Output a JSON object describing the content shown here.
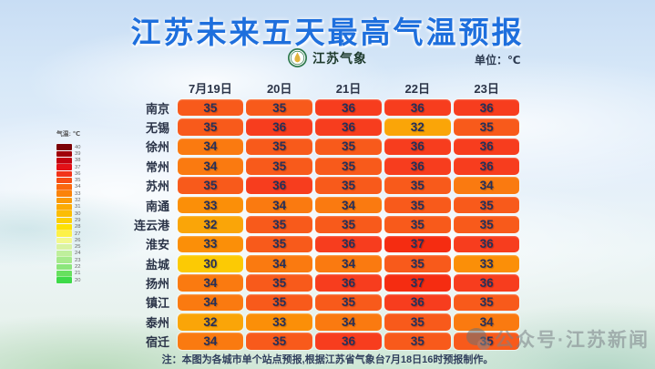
{
  "title": "江苏未来五天最高气温预报",
  "logo": {
    "name": "江苏气象"
  },
  "unit_label": "单位：℃",
  "legend": {
    "title": "气温: ℃",
    "steps": [
      {
        "value": "40",
        "color": "#7c0207"
      },
      {
        "value": "39",
        "color": "#a00009"
      },
      {
        "value": "38",
        "color": "#c30310"
      },
      {
        "value": "37",
        "color": "#e31117"
      },
      {
        "value": "36",
        "color": "#f2331a"
      },
      {
        "value": "35",
        "color": "#f74d14"
      },
      {
        "value": "34",
        "color": "#fa680e"
      },
      {
        "value": "33",
        "color": "#fb8309"
      },
      {
        "value": "32",
        "color": "#fa9a06"
      },
      {
        "value": "31",
        "color": "#fbab05"
      },
      {
        "value": "30",
        "color": "#fbbd04"
      },
      {
        "value": "29",
        "color": "#fccf03"
      },
      {
        "value": "28",
        "color": "#fde104"
      },
      {
        "value": "27",
        "color": "#fdf148"
      },
      {
        "value": "26",
        "color": "#f2f88e"
      },
      {
        "value": "25",
        "color": "#d9f3a3"
      },
      {
        "value": "24",
        "color": "#bfef9c"
      },
      {
        "value": "23",
        "color": "#a6ea8c"
      },
      {
        "value": "22",
        "color": "#8ce67c"
      },
      {
        "value": "21",
        "color": "#67e05f"
      },
      {
        "value": "20",
        "color": "#3eda49"
      }
    ]
  },
  "table": {
    "columns": [
      "7月19日",
      "20日",
      "21日",
      "22日",
      "23日"
    ],
    "rows": [
      {
        "city": "南京",
        "temps": [
          35,
          35,
          36,
          36,
          36
        ]
      },
      {
        "city": "无锡",
        "temps": [
          35,
          36,
          36,
          32,
          35
        ]
      },
      {
        "city": "徐州",
        "temps": [
          34,
          35,
          35,
          36,
          36
        ]
      },
      {
        "city": "常州",
        "temps": [
          34,
          35,
          35,
          36,
          36
        ]
      },
      {
        "city": "苏州",
        "temps": [
          35,
          36,
          35,
          35,
          34
        ]
      },
      {
        "city": "南通",
        "temps": [
          33,
          34,
          34,
          35,
          35
        ]
      },
      {
        "city": "连云港",
        "temps": [
          32,
          35,
          35,
          35,
          35
        ]
      },
      {
        "city": "淮安",
        "temps": [
          33,
          35,
          36,
          37,
          36
        ]
      },
      {
        "city": "盐城",
        "temps": [
          30,
          34,
          34,
          35,
          33
        ]
      },
      {
        "city": "扬州",
        "temps": [
          34,
          35,
          36,
          37,
          36
        ]
      },
      {
        "city": "镇江",
        "temps": [
          34,
          35,
          35,
          36,
          35
        ]
      },
      {
        "city": "泰州",
        "temps": [
          32,
          33,
          34,
          35,
          34
        ]
      },
      {
        "city": "宿迁",
        "temps": [
          34,
          35,
          36,
          35,
          35
        ]
      }
    ],
    "temp_colors": {
      "30": "#fcca04",
      "32": "#faa508",
      "33": "#fb8f08",
      "34": "#fa7a10",
      "35": "#f85a1b",
      "36": "#f73d1e",
      "37": "#f52c11"
    }
  },
  "note": "注：本图为各城市单个站点预报,根据江苏省气象台7月18日16时预报制作。",
  "watermark": {
    "text": "公众号·江苏新闻"
  },
  "chart_data": {
    "type": "heatmap",
    "title": "江苏未来五天最高气温预报",
    "unit": "℃",
    "x": [
      "7月19日",
      "20日",
      "21日",
      "22日",
      "23日"
    ],
    "y": [
      "南京",
      "无锡",
      "徐州",
      "常州",
      "苏州",
      "南通",
      "连云港",
      "淮安",
      "盐城",
      "扬州",
      "镇江",
      "泰州",
      "宿迁"
    ],
    "values": [
      [
        35,
        35,
        36,
        36,
        36
      ],
      [
        35,
        36,
        36,
        32,
        35
      ],
      [
        34,
        35,
        35,
        36,
        36
      ],
      [
        34,
        35,
        35,
        36,
        36
      ],
      [
        35,
        36,
        35,
        35,
        34
      ],
      [
        33,
        34,
        34,
        35,
        35
      ],
      [
        32,
        35,
        35,
        35,
        35
      ],
      [
        33,
        35,
        36,
        37,
        36
      ],
      [
        30,
        34,
        34,
        35,
        33
      ],
      [
        34,
        35,
        36,
        37,
        36
      ],
      [
        34,
        35,
        35,
        36,
        35
      ],
      [
        32,
        33,
        34,
        35,
        34
      ],
      [
        34,
        35,
        36,
        35,
        35
      ]
    ],
    "colorbar_range": [
      20,
      40
    ],
    "legend_position": "left",
    "source_note": "注：本图为各城市单个站点预报,根据江苏省气象台7月18日16时预报制作。"
  }
}
